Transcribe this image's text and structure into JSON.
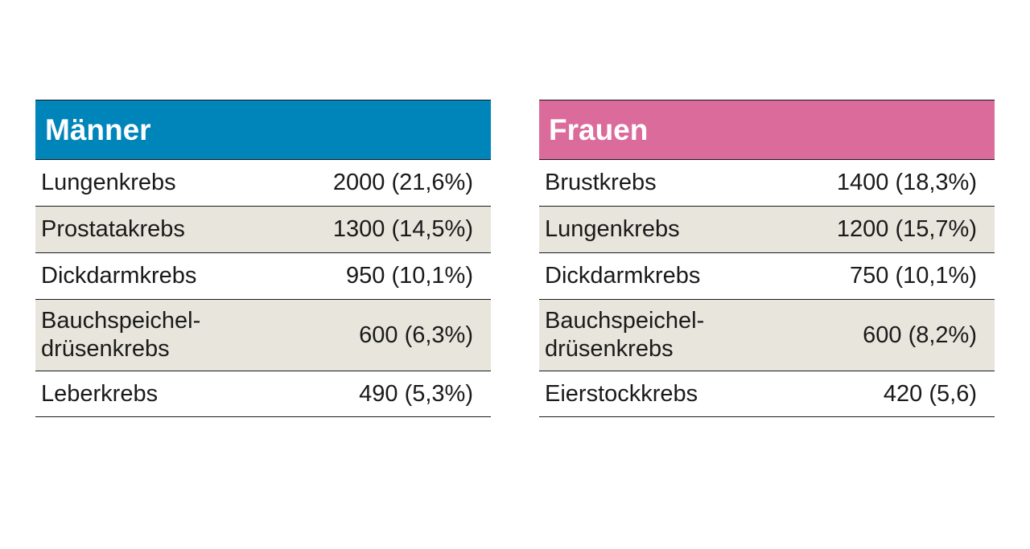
{
  "men": {
    "title": "Männer",
    "color": "#0085bb",
    "rows": [
      {
        "label": "Lungenkrebs",
        "value": "2000 (21,6%)"
      },
      {
        "label": "Prostatakrebs",
        "value": "1300 (14,5%)"
      },
      {
        "label": "Dickdarmkrebs",
        "value": "950 (10,1%)"
      },
      {
        "label": "Bauchspeichel-\ndrüsenkrebs",
        "value": "600 (6,3%)"
      },
      {
        "label": "Leberkrebs",
        "value": "490 (5,3%)"
      }
    ]
  },
  "women": {
    "title": "Frauen",
    "color": "#db6b9b",
    "rows": [
      {
        "label": "Brustkrebs",
        "value": "1400 (18,3%)"
      },
      {
        "label": "Lungenkrebs",
        "value": "1200 (15,7%)"
      },
      {
        "label": "Dickdarmkrebs",
        "value": "750 (10,1%)"
      },
      {
        "label": "Bauchspeichel-\ndrüsenkrebs",
        "value": "600 (8,2%)"
      },
      {
        "label": "Eierstockkrebs",
        "value": "420 (5,6)"
      }
    ]
  },
  "row_backgrounds": [
    "#ffffff",
    "#e8e5dd"
  ]
}
